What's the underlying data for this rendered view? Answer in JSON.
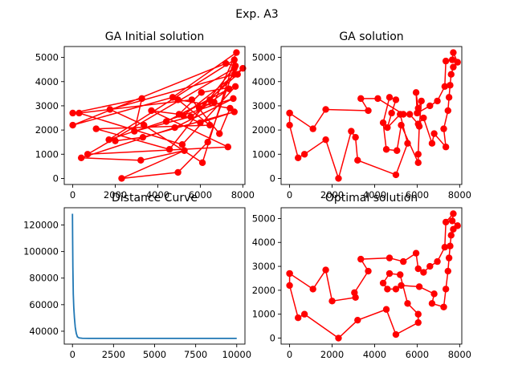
{
  "figure": {
    "suptitle": "Exp. A3"
  },
  "chart_data": [
    {
      "type": "line",
      "title": "GA Initial solution",
      "xlim": [
        -400,
        8100
      ],
      "ylim": [
        -250,
        5450
      ],
      "xticks": [
        "0",
        "2000",
        "4000",
        "6000",
        "8000"
      ],
      "yticks": [
        "0",
        "1000",
        "2000",
        "3000",
        "4000",
        "5000"
      ],
      "color": "#ff0000",
      "markers": true,
      "points": [
        [
          0,
          2700
        ],
        [
          3250,
          3300
        ],
        [
          2900,
          1950
        ],
        [
          5550,
          2550
        ],
        [
          7350,
          3700
        ],
        [
          4400,
          2350
        ],
        [
          6450,
          3250
        ],
        [
          7600,
          4300
        ],
        [
          1750,
          2850
        ],
        [
          3350,
          2200
        ],
        [
          6100,
          650
        ],
        [
          7600,
          4900
        ],
        [
          1700,
          1600
        ],
        [
          7550,
          3300
        ],
        [
          4800,
          2100
        ],
        [
          400,
          850
        ],
        [
          3200,
          750
        ],
        [
          5250,
          1150
        ],
        [
          2300,
          0
        ],
        [
          4950,
          250
        ],
        [
          6350,
          1500
        ],
        [
          7600,
          4550
        ],
        [
          700,
          1000
        ],
        [
          7300,
          1300
        ],
        [
          3700,
          2800
        ],
        [
          5000,
          2650
        ],
        [
          6050,
          3550
        ],
        [
          7650,
          3800
        ],
        [
          5150,
          1400
        ],
        [
          300,
          2700
        ],
        [
          5600,
          3250
        ],
        [
          6900,
          1850
        ],
        [
          7400,
          2900
        ],
        [
          4950,
          3250
        ],
        [
          6450,
          2200
        ],
        [
          1100,
          2050
        ],
        [
          4550,
          1200
        ],
        [
          7650,
          4650
        ],
        [
          7200,
          4750
        ],
        [
          0,
          2200
        ],
        [
          4700,
          3350
        ],
        [
          7700,
          5200
        ],
        [
          6650,
          3150
        ],
        [
          5950,
          2900
        ],
        [
          7750,
          4300
        ],
        [
          8000,
          4550
        ],
        [
          5200,
          2600
        ],
        [
          6000,
          2300
        ],
        [
          7600,
          2750
        ],
        [
          3300,
          1700
        ],
        [
          2000,
          1550
        ]
      ]
    },
    {
      "type": "line",
      "title": "GA solution",
      "xlim": [
        -400,
        8100
      ],
      "ylim": [
        -250,
        5450
      ],
      "xticks": [
        "0",
        "2000",
        "4000",
        "6000",
        "8000"
      ],
      "yticks": [
        "0",
        "1000",
        "2000",
        "3000",
        "4000",
        "5000"
      ],
      "color": "#ff0000",
      "markers": true,
      "points": [
        [
          0,
          2700
        ],
        [
          0,
          2200
        ],
        [
          400,
          850
        ],
        [
          700,
          1000
        ],
        [
          1700,
          1600
        ],
        [
          2300,
          0
        ],
        [
          2900,
          1950
        ],
        [
          3100,
          1700
        ],
        [
          3200,
          750
        ],
        [
          5000,
          150
        ],
        [
          5550,
          1450
        ],
        [
          5200,
          2650
        ],
        [
          4600,
          2100
        ],
        [
          4800,
          2700
        ],
        [
          5000,
          3250
        ],
        [
          4700,
          3350
        ],
        [
          4400,
          2300
        ],
        [
          4550,
          1200
        ],
        [
          5050,
          1150
        ],
        [
          5250,
          2200
        ],
        [
          6050,
          650
        ],
        [
          6050,
          1000
        ],
        [
          6100,
          2150
        ],
        [
          6200,
          3200
        ],
        [
          6050,
          2900
        ],
        [
          5950,
          3550
        ],
        [
          6000,
          2700
        ],
        [
          6600,
          3000
        ],
        [
          6950,
          3200
        ],
        [
          7300,
          3800
        ],
        [
          7350,
          4850
        ],
        [
          7650,
          4900
        ],
        [
          7700,
          5200
        ],
        [
          7900,
          4800
        ],
        [
          7700,
          4600
        ],
        [
          7600,
          4300
        ],
        [
          7550,
          3850
        ],
        [
          7500,
          3350
        ],
        [
          7450,
          2800
        ],
        [
          7250,
          2050
        ],
        [
          7350,
          1300
        ],
        [
          6800,
          1850
        ],
        [
          6700,
          1450
        ],
        [
          6300,
          2500
        ],
        [
          6050,
          2250
        ],
        [
          5650,
          2650
        ],
        [
          5350,
          2650
        ],
        [
          4150,
          3300
        ],
        [
          3350,
          3300
        ],
        [
          3700,
          2800
        ],
        [
          1700,
          2850
        ],
        [
          1100,
          2050
        ],
        [
          0,
          2700
        ]
      ]
    },
    {
      "type": "line",
      "title": "Distance Curve",
      "xlim": [
        -500,
        10500
      ],
      "ylim": [
        30300,
        133000
      ],
      "xticks": [
        "0",
        "2500",
        "5000",
        "7500",
        "10000"
      ],
      "yticks": [
        "40000",
        "60000",
        "80000",
        "100000",
        "120000"
      ],
      "color": "#1f77b4",
      "markers": false,
      "points": [
        [
          0,
          128500
        ],
        [
          10,
          110000
        ],
        [
          25,
          88000
        ],
        [
          50,
          68000
        ],
        [
          80,
          58000
        ],
        [
          120,
          50000
        ],
        [
          170,
          43000
        ],
        [
          230,
          38500
        ],
        [
          300,
          35800
        ],
        [
          400,
          35000
        ],
        [
          600,
          34700
        ],
        [
          1000,
          34600
        ],
        [
          10000,
          34600
        ]
      ]
    },
    {
      "type": "line",
      "title": "Optimal solution",
      "xlim": [
        -400,
        8100
      ],
      "ylim": [
        -250,
        5450
      ],
      "xticks": [
        "0",
        "2000",
        "4000",
        "6000",
        "8000"
      ],
      "yticks": [
        "0",
        "1000",
        "2000",
        "3000",
        "4000",
        "5000"
      ],
      "color": "#ff0000",
      "markers": true,
      "points": [
        [
          0,
          2700
        ],
        [
          0,
          2200
        ],
        [
          400,
          850
        ],
        [
          700,
          1000
        ],
        [
          2300,
          0
        ],
        [
          3200,
          750
        ],
        [
          4550,
          1200
        ],
        [
          5000,
          150
        ],
        [
          6050,
          650
        ],
        [
          6050,
          1000
        ],
        [
          5550,
          1450
        ],
        [
          5200,
          2650
        ],
        [
          4700,
          2700
        ],
        [
          4400,
          2300
        ],
        [
          4600,
          2050
        ],
        [
          5000,
          2050
        ],
        [
          5250,
          2200
        ],
        [
          6100,
          2150
        ],
        [
          6800,
          1850
        ],
        [
          6700,
          1450
        ],
        [
          7250,
          1300
        ],
        [
          7350,
          2050
        ],
        [
          7450,
          2800
        ],
        [
          7500,
          3350
        ],
        [
          7550,
          3850
        ],
        [
          7600,
          4300
        ],
        [
          7700,
          4550
        ],
        [
          7900,
          4700
        ],
        [
          7650,
          4900
        ],
        [
          7700,
          5200
        ],
        [
          7350,
          4850
        ],
        [
          7300,
          3800
        ],
        [
          6950,
          3200
        ],
        [
          6600,
          3000
        ],
        [
          6300,
          2750
        ],
        [
          6050,
          2900
        ],
        [
          5950,
          3550
        ],
        [
          5350,
          3200
        ],
        [
          4700,
          3350
        ],
        [
          3350,
          3300
        ],
        [
          3700,
          2800
        ],
        [
          3050,
          1900
        ],
        [
          3100,
          1700
        ],
        [
          2000,
          1550
        ],
        [
          1700,
          2850
        ],
        [
          1100,
          2050
        ],
        [
          0,
          2700
        ]
      ]
    }
  ]
}
